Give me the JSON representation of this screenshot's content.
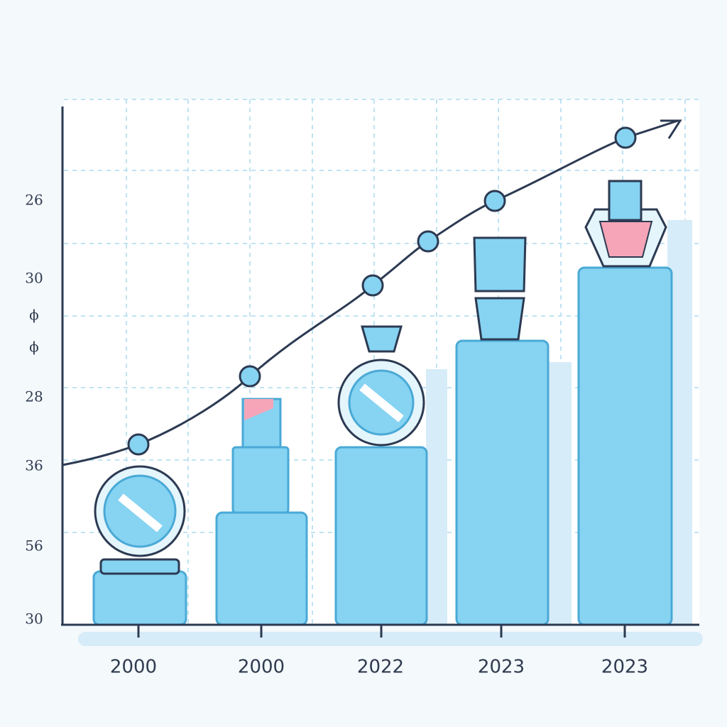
{
  "y_axis_labels": [
    "26",
    "30",
    "ϕ",
    "ϕ",
    "28",
    "36",
    "56",
    "30"
  ],
  "x_axis_labels": [
    "2000",
    "2000",
    "2022",
    "2023",
    "2023"
  ]
}
